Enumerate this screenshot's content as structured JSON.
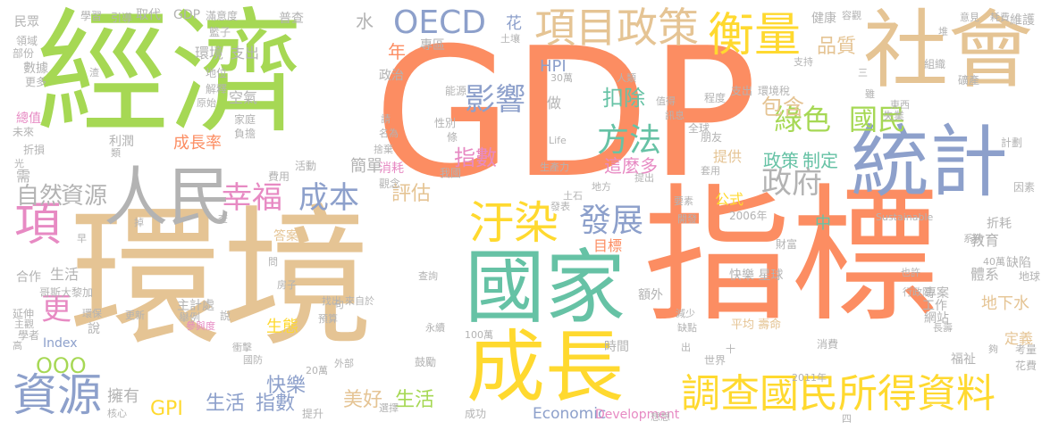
{
  "palette": {
    "green": "#a6d854",
    "tan": "#e5c494",
    "orange": "#fc8d62",
    "teal": "#66c2a5",
    "blue": "#8da0cb",
    "pink": "#e78ac3",
    "yellow": "#ffd92f",
    "gray": "#b3b3b3"
  },
  "words": [
    {
      "text": "GDP",
      "color": "#fc8d62"
    },
    {
      "text": "經濟",
      "color": "#a6d854"
    },
    {
      "text": "環境",
      "color": "#e5c494"
    },
    {
      "text": "指標",
      "color": "#fc8d62"
    },
    {
      "text": "國家",
      "color": "#66c2a5"
    },
    {
      "text": "社會",
      "color": "#e5c494"
    },
    {
      "text": "統計",
      "color": "#8da0cb"
    },
    {
      "text": "成長",
      "color": "#ffd92f"
    },
    {
      "text": "人民",
      "color": "#b3b3b3"
    },
    {
      "text": "項目政策",
      "color": "#e5c494"
    },
    {
      "text": "衡量",
      "color": "#ffd92f"
    },
    {
      "text": "調查國民所得資料",
      "color": "#ffd92f"
    },
    {
      "text": "資源",
      "color": "#8da0cb"
    },
    {
      "text": "汙染",
      "color": "#ffd92f"
    },
    {
      "text": "項",
      "color": "#e78ac3"
    },
    {
      "text": "發展",
      "color": "#8da0cb"
    },
    {
      "text": "方法",
      "color": "#66c2a5"
    },
    {
      "text": "影響",
      "color": "#8da0cb"
    },
    {
      "text": "幸福",
      "color": "#e78ac3"
    },
    {
      "text": "成本",
      "color": "#8da0cb"
    },
    {
      "text": "OECD",
      "color": "#8da0cb"
    },
    {
      "text": "政府",
      "color": "#b3b3b3"
    },
    {
      "text": "綠色",
      "color": "#a6d854"
    },
    {
      "text": "國民",
      "color": "#a6d854"
    },
    {
      "text": "自然",
      "color": "#b3b3b3"
    },
    {
      "text": "資源",
      "color": "#b3b3b3"
    },
    {
      "text": "更",
      "color": "#e78ac3"
    },
    {
      "text": "指數",
      "color": "#e78ac3"
    },
    {
      "text": "扣除",
      "color": "#66c2a5"
    },
    {
      "text": "包含",
      "color": "#e5c494"
    },
    {
      "text": "品質",
      "color": "#e5c494"
    },
    {
      "text": "美好",
      "color": "#e5c494"
    },
    {
      "text": "生活",
      "color": "#a6d854"
    },
    {
      "text": "生活",
      "color": "#8da0cb"
    },
    {
      "text": "指數",
      "color": "#8da0cb"
    },
    {
      "text": "GPI",
      "color": "#ffd92f"
    },
    {
      "text": "政策",
      "color": "#66c2a5"
    },
    {
      "text": "制定",
      "color": "#66c2a5"
    },
    {
      "text": "這麼多",
      "color": "#e78ac3"
    },
    {
      "text": "評估",
      "color": "#e5c494"
    },
    {
      "text": "快樂",
      "color": "#8da0cb"
    },
    {
      "text": "年",
      "color": "#fc8d62"
    },
    {
      "text": "水",
      "color": "#b3b3b3"
    },
    {
      "text": "環境",
      "color": "#b3b3b3"
    },
    {
      "text": "支出",
      "color": "#b3b3b3"
    },
    {
      "text": "空氣",
      "color": "#b3b3b3"
    },
    {
      "text": "成長率",
      "color": "#fc8d62"
    },
    {
      "text": "簡單",
      "color": "#b3b3b3"
    },
    {
      "text": "擁有",
      "color": "#b3b3b3"
    },
    {
      "text": "目標",
      "color": "#fc8d62"
    },
    {
      "text": "花",
      "color": "#8da0cb"
    },
    {
      "text": "HPI",
      "color": "#8da0cb"
    },
    {
      "text": "做",
      "color": "#b3b3b3"
    },
    {
      "text": "提供",
      "color": "#e5c494"
    },
    {
      "text": "公式",
      "color": "#ffd92f"
    },
    {
      "text": "中",
      "color": "#66c2a5"
    },
    {
      "text": "教育",
      "color": "#b3b3b3"
    },
    {
      "text": "體系",
      "color": "#b3b3b3"
    },
    {
      "text": "地下水",
      "color": "#e5c494"
    },
    {
      "text": "定義",
      "color": "#e5c494"
    },
    {
      "text": "福祉",
      "color": "#b3b3b3"
    },
    {
      "text": "Economic",
      "color": "#8da0cb"
    },
    {
      "text": "Development",
      "color": "#e78ac3"
    },
    {
      "text": "Index",
      "color": "#8da0cb"
    },
    {
      "text": "OOO",
      "color": "#a6d854"
    },
    {
      "text": "需",
      "color": "#b3b3b3"
    },
    {
      "text": "生態",
      "color": "#ffd92f"
    },
    {
      "text": "答案",
      "color": "#e5c494"
    },
    {
      "text": "說",
      "color": "#b3b3b3"
    },
    {
      "text": "取代",
      "color": "#b3b3b3"
    },
    {
      "text": "GDP",
      "color": "#b3b3b3"
    },
    {
      "text": "普查",
      "color": "#b3b3b3"
    },
    {
      "text": "專區",
      "color": "#b3b3b3"
    },
    {
      "text": "政治",
      "color": "#b3b3b3"
    },
    {
      "text": "快樂 星球",
      "color": "#b3b3b3"
    },
    {
      "text": "平均 壽命",
      "color": "#e5c494"
    },
    {
      "text": "2006年",
      "color": "#b3b3b3"
    },
    {
      "text": "專案",
      "color": "#b3b3b3"
    },
    {
      "text": "網站",
      "color": "#b3b3b3"
    },
    {
      "text": "工作",
      "color": "#b3b3b3"
    },
    {
      "text": "時間",
      "color": "#b3b3b3"
    },
    {
      "text": "額外",
      "color": "#b3b3b3"
    },
    {
      "text": "成功",
      "color": "#b3b3b3"
    },
    {
      "text": "生活",
      "color": "#b3b3b3"
    },
    {
      "text": "合作",
      "color": "#b3b3b3"
    },
    {
      "text": "民眾",
      "color": "#b3b3b3"
    },
    {
      "text": "總值",
      "color": "#e78ac3"
    },
    {
      "text": "數據",
      "color": "#b3b3b3"
    },
    {
      "text": "延伸",
      "color": "#b3b3b3"
    },
    {
      "text": "主計處",
      "color": "#b3b3b3"
    },
    {
      "text": "舉例",
      "color": "#b3b3b3"
    },
    {
      "text": "說",
      "color": "#b3b3b3"
    },
    {
      "text": "提升",
      "color": "#b3b3b3"
    },
    {
      "text": "鼓勵",
      "color": "#b3b3b3"
    },
    {
      "text": "消耗",
      "color": "#e78ac3"
    },
    {
      "text": "觀念",
      "color": "#b3b3b3"
    },
    {
      "text": "性別",
      "color": "#b3b3b3"
    },
    {
      "text": "能源",
      "color": "#b3b3b3"
    },
    {
      "text": "條",
      "color": "#b3b3b3"
    },
    {
      "text": "我國",
      "color": "#b3b3b3"
    },
    {
      "text": "利潤",
      "color": "#b3b3b3"
    },
    {
      "text": "活動",
      "color": "#b3b3b3"
    },
    {
      "text": "地位",
      "color": "#b3b3b3"
    },
    {
      "text": "解釋",
      "color": "#b3b3b3"
    },
    {
      "text": "費用",
      "color": "#b3b3b3"
    },
    {
      "text": "家庭",
      "color": "#b3b3b3"
    },
    {
      "text": "負擔",
      "color": "#b3b3b3"
    },
    {
      "text": "健康",
      "color": "#b3b3b3"
    },
    {
      "text": "維護",
      "color": "#b3b3b3"
    },
    {
      "text": "組織",
      "color": "#b3b3b3"
    },
    {
      "text": "礦產",
      "color": "#b3b3b3"
    },
    {
      "text": "失業",
      "color": "#b3b3b3"
    },
    {
      "text": "程度",
      "color": "#b3b3b3"
    },
    {
      "text": "朋友",
      "color": "#b3b3b3"
    },
    {
      "text": "全球",
      "color": "#b3b3b3"
    },
    {
      "text": "計劃",
      "color": "#b3b3b3"
    },
    {
      "text": "因素",
      "color": "#b3b3b3"
    },
    {
      "text": "折耗",
      "color": "#b3b3b3"
    },
    {
      "text": "缺陷",
      "color": "#b3b3b3"
    },
    {
      "text": "地球",
      "color": "#b3b3b3"
    },
    {
      "text": "考量",
      "color": "#b3b3b3"
    },
    {
      "text": "花費",
      "color": "#b3b3b3"
    },
    {
      "text": "消費",
      "color": "#b3b3b3"
    },
    {
      "text": "世界",
      "color": "#b3b3b3"
    },
    {
      "text": "缺點",
      "color": "#b3b3b3"
    },
    {
      "text": "減少",
      "color": "#b3b3b3"
    },
    {
      "text": "財富",
      "color": "#b3b3b3"
    },
    {
      "text": "學習",
      "color": "#b3b3b3"
    },
    {
      "text": "引導",
      "color": "#b3b3b3"
    },
    {
      "text": "滿意度",
      "color": "#b3b3b3"
    },
    {
      "text": "籃子",
      "color": "#b3b3b3"
    },
    {
      "text": "領域",
      "color": "#b3b3b3"
    },
    {
      "text": "部份",
      "color": "#b3b3b3"
    },
    {
      "text": "更多",
      "color": "#b3b3b3"
    },
    {
      "text": "未來",
      "color": "#b3b3b3"
    },
    {
      "text": "折損",
      "color": "#b3b3b3"
    },
    {
      "text": "哥斯大黎加",
      "color": "#b3b3b3"
    },
    {
      "text": "學者",
      "color": "#b3b3b3"
    },
    {
      "text": "核心",
      "color": "#b3b3b3"
    },
    {
      "text": "參與度",
      "color": "#e78ac3"
    },
    {
      "text": "國防",
      "color": "#b3b3b3"
    },
    {
      "text": "20萬",
      "color": "#b3b3b3"
    },
    {
      "text": "外部",
      "color": "#b3b3b3"
    },
    {
      "text": "選擇",
      "color": "#b3b3b3"
    },
    {
      "text": "人類",
      "color": "#b3b3b3"
    },
    {
      "text": "30萬",
      "color": "#b3b3b3"
    },
    {
      "text": "值得",
      "color": "#b3b3b3"
    },
    {
      "text": "訊息",
      "color": "#b3b3b3"
    },
    {
      "text": "支出",
      "color": "#b3b3b3"
    },
    {
      "text": "環境稅",
      "color": "#b3b3b3"
    },
    {
      "text": "Life",
      "color": "#b3b3b3"
    },
    {
      "text": "生產力",
      "color": "#b3b3b3"
    },
    {
      "text": "提出",
      "color": "#b3b3b3"
    },
    {
      "text": "地方",
      "color": "#b3b3b3"
    },
    {
      "text": "土石",
      "color": "#b3b3b3"
    },
    {
      "text": "發表",
      "color": "#b3b3b3"
    },
    {
      "text": "要素",
      "color": "#b3b3b3"
    },
    {
      "text": "Sustainable",
      "color": "#b3b3b3"
    },
    {
      "text": "行政院",
      "color": "#b3b3b3"
    },
    {
      "text": "也許",
      "color": "#b3b3b3"
    },
    {
      "text": "40萬",
      "color": "#b3b3b3"
    },
    {
      "text": "2011年",
      "color": "#b3b3b3"
    },
    {
      "text": "想想",
      "color": "#b3b3b3"
    },
    {
      "text": "100萬",
      "color": "#b3b3b3"
    },
    {
      "text": "永續",
      "color": "#b3b3b3"
    },
    {
      "text": "來自於",
      "color": "#b3b3b3"
    },
    {
      "text": "找出",
      "color": "#b3b3b3"
    },
    {
      "text": "預算",
      "color": "#b3b3b3"
    },
    {
      "text": "查詢",
      "color": "#b3b3b3"
    },
    {
      "text": "房子",
      "color": "#b3b3b3"
    },
    {
      "text": "環保",
      "color": "#b3b3b3"
    },
    {
      "text": "主觀",
      "color": "#b3b3b3"
    },
    {
      "text": "衝擊",
      "color": "#b3b3b3"
    },
    {
      "text": "更新",
      "color": "#b3b3b3"
    },
    {
      "text": "耗費",
      "color": "#b3b3b3"
    },
    {
      "text": "容觀",
      "color": "#b3b3b3"
    },
    {
      "text": "意見",
      "color": "#b3b3b3"
    },
    {
      "text": "東西",
      "color": "#b3b3b3"
    },
    {
      "text": "名為",
      "color": "#b3b3b3"
    },
    {
      "text": "捨棄",
      "color": "#b3b3b3"
    },
    {
      "text": "原始",
      "color": "#b3b3b3"
    },
    {
      "text": "土壤",
      "color": "#b3b3b3"
    },
    {
      "text": "開發",
      "color": "#b3b3b3"
    },
    {
      "text": "套用",
      "color": "#b3b3b3"
    },
    {
      "text": "長壽",
      "color": "#b3b3b3"
    },
    {
      "text": "系統",
      "color": "#b3b3b3"
    },
    {
      "text": "雖",
      "color": "#b3b3b3"
    },
    {
      "text": "支持",
      "color": "#b3b3b3"
    },
    {
      "text": "堆",
      "color": "#b3b3b3"
    },
    {
      "text": "高",
      "color": "#b3b3b3"
    },
    {
      "text": "夠",
      "color": "#b3b3b3"
    },
    {
      "text": "早",
      "color": "#b3b3b3"
    },
    {
      "text": "掉",
      "color": "#b3b3b3"
    },
    {
      "text": "查",
      "color": "#b3b3b3"
    },
    {
      "text": "問",
      "color": "#b3b3b3"
    },
    {
      "text": "句",
      "color": "#b3b3b3"
    },
    {
      "text": "出",
      "color": "#b3b3b3"
    },
    {
      "text": "光",
      "color": "#b3b3b3"
    },
    {
      "text": "類",
      "color": "#b3b3b3"
    },
    {
      "text": "十",
      "color": "#b3b3b3"
    },
    {
      "text": "四",
      "color": "#b3b3b3"
    },
    {
      "text": "三",
      "color": "#b3b3b3"
    },
    {
      "text": "請",
      "color": "#b3b3b3"
    },
    {
      "text": "渣",
      "color": "#b3b3b3"
    }
  ]
}
